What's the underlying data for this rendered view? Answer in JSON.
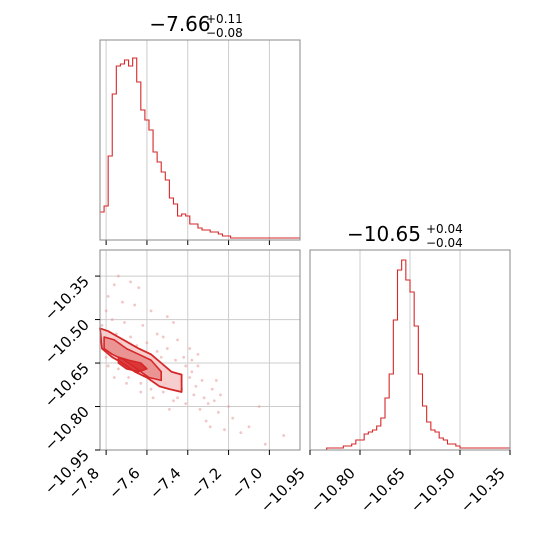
{
  "chart_data": [
    {
      "type": "histogram",
      "title": "−7.66",
      "title_sup": "+0.11",
      "title_sub": "−0.08",
      "xlim": [
        -7.83,
        -6.85
      ],
      "ylim": [
        0,
        1.0
      ],
      "grid": true,
      "color": "#d62728",
      "bins": {
        "x_start": -7.83,
        "width": 0.02,
        "heights": [
          0.14,
          0.17,
          0.42,
          0.73,
          0.87,
          0.88,
          0.9,
          0.87,
          0.91,
          0.79,
          0.65,
          0.6,
          0.55,
          0.44,
          0.39,
          0.34,
          0.3,
          0.21,
          0.18,
          0.12,
          0.13,
          0.12,
          0.08,
          0.08,
          0.06,
          0.05,
          0.05,
          0.04,
          0.04,
          0.03,
          0.02,
          0.02,
          0.01,
          0.01,
          0.01,
          0.01,
          0.01,
          0.01,
          0.01,
          0.01,
          0.01,
          0.01,
          0.01,
          0.01,
          0.01,
          0.01,
          0.01,
          0.01,
          0.01
        ]
      }
    },
    {
      "type": "scatter",
      "xlim": [
        -7.83,
        -6.85
      ],
      "ylim": [
        -10.95,
        -10.26
      ],
      "x_ticks": [
        "−7.8",
        "−7.6",
        "−7.4",
        "−7.2",
        "−7.0"
      ],
      "x_tick_values": [
        -7.8,
        -7.6,
        -7.4,
        -7.2,
        -7.0
      ],
      "y_ticks": [
        "−10.35",
        "−10.50",
        "−10.65",
        "−10.80",
        "−10.95"
      ],
      "y_tick_values": [
        -10.35,
        -10.5,
        -10.65,
        -10.8,
        -10.95
      ],
      "grid": true,
      "color": "#d62728",
      "contours": [
        {
          "level": "outer",
          "points": [
            [
              -7.83,
              -10.53
            ],
            [
              -7.79,
              -10.54
            ],
            [
              -7.74,
              -10.56
            ],
            [
              -7.69,
              -10.58
            ],
            [
              -7.64,
              -10.6
            ],
            [
              -7.58,
              -10.62
            ],
            [
              -7.53,
              -10.65
            ],
            [
              -7.48,
              -10.68
            ],
            [
              -7.43,
              -10.69
            ],
            [
              -7.43,
              -10.75
            ],
            [
              -7.49,
              -10.74
            ],
            [
              -7.54,
              -10.73
            ],
            [
              -7.6,
              -10.7
            ],
            [
              -7.66,
              -10.68
            ],
            [
              -7.72,
              -10.65
            ],
            [
              -7.77,
              -10.63
            ],
            [
              -7.82,
              -10.6
            ]
          ]
        },
        {
          "level": "middle",
          "points": [
            [
              -7.81,
              -10.56
            ],
            [
              -7.76,
              -10.57
            ],
            [
              -7.7,
              -10.6
            ],
            [
              -7.64,
              -10.62
            ],
            [
              -7.58,
              -10.64
            ],
            [
              -7.53,
              -10.68
            ],
            [
              -7.53,
              -10.71
            ],
            [
              -7.59,
              -10.7
            ],
            [
              -7.65,
              -10.67
            ],
            [
              -7.71,
              -10.64
            ],
            [
              -7.77,
              -10.62
            ],
            [
              -7.81,
              -10.6
            ]
          ]
        },
        {
          "level": "inner",
          "points": [
            [
              -7.74,
              -10.63
            ],
            [
              -7.69,
              -10.64
            ],
            [
              -7.63,
              -10.65
            ],
            [
              -7.6,
              -10.67
            ],
            [
              -7.64,
              -10.68
            ],
            [
              -7.7,
              -10.67
            ],
            [
              -7.74,
              -10.65
            ]
          ]
        }
      ],
      "points": [
        [
          -7.76,
          -10.38
        ],
        [
          -7.74,
          -10.35
        ],
        [
          -7.68,
          -10.37
        ],
        [
          -7.64,
          -10.39
        ],
        [
          -7.79,
          -10.42
        ],
        [
          -7.72,
          -10.44
        ],
        [
          -7.66,
          -10.45
        ],
        [
          -7.58,
          -10.47
        ],
        [
          -7.5,
          -10.49
        ],
        [
          -7.8,
          -10.47
        ],
        [
          -7.77,
          -10.5
        ],
        [
          -7.71,
          -10.51
        ],
        [
          -7.62,
          -10.52
        ],
        [
          -7.55,
          -10.55
        ],
        [
          -7.45,
          -10.57
        ],
        [
          -7.39,
          -10.6
        ],
        [
          -7.82,
          -10.52
        ],
        [
          -7.75,
          -10.55
        ],
        [
          -7.68,
          -10.56
        ],
        [
          -7.6,
          -10.58
        ],
        [
          -7.5,
          -10.6
        ],
        [
          -7.42,
          -10.63
        ],
        [
          -7.35,
          -10.66
        ],
        [
          -7.33,
          -10.71
        ],
        [
          -7.37,
          -10.76
        ],
        [
          -7.41,
          -10.79
        ],
        [
          -7.45,
          -10.77
        ],
        [
          -7.28,
          -10.74
        ],
        [
          -7.3,
          -10.79
        ],
        [
          -7.25,
          -10.82
        ],
        [
          -7.31,
          -10.85
        ],
        [
          -7.22,
          -10.88
        ],
        [
          -7.1,
          -10.87
        ],
        [
          -7.05,
          -10.8
        ],
        [
          -6.93,
          -10.9
        ],
        [
          -7.14,
          -10.89
        ],
        [
          -7.47,
          -10.51
        ],
        [
          -7.52,
          -10.56
        ],
        [
          -7.44,
          -10.71
        ],
        [
          -7.39,
          -10.7
        ],
        [
          -7.36,
          -10.73
        ],
        [
          -7.32,
          -10.77
        ],
        [
          -7.27,
          -10.78
        ],
        [
          -7.2,
          -10.8
        ],
        [
          -7.18,
          -10.84
        ],
        [
          -7.78,
          -10.58
        ],
        [
          -7.8,
          -10.63
        ],
        [
          -7.74,
          -10.67
        ],
        [
          -7.69,
          -10.7
        ],
        [
          -7.63,
          -10.72
        ],
        [
          -7.58,
          -10.74
        ],
        [
          -7.52,
          -10.75
        ],
        [
          -7.47,
          -10.78
        ],
        [
          -7.49,
          -10.81
        ],
        [
          -7.57,
          -10.77
        ],
        [
          -7.63,
          -10.75
        ],
        [
          -7.7,
          -10.72
        ],
        [
          -7.41,
          -10.66
        ],
        [
          -7.38,
          -10.64
        ],
        [
          -7.46,
          -10.64
        ],
        [
          -7.55,
          -10.61
        ],
        [
          -7.65,
          -10.59
        ],
        [
          -7.73,
          -10.58
        ],
        [
          -7.81,
          -10.57
        ],
        [
          -7.79,
          -10.66
        ],
        [
          -7.76,
          -10.7
        ],
        [
          -7.24,
          -10.76
        ],
        [
          -7.34,
          -10.81
        ],
        [
          -7.29,
          -10.87
        ],
        [
          -7.02,
          -10.93
        ],
        [
          -7.53,
          -10.63
        ],
        [
          -7.6,
          -10.66
        ],
        [
          -7.67,
          -10.63
        ],
        [
          -7.71,
          -10.61
        ],
        [
          -7.75,
          -10.62
        ],
        [
          -7.56,
          -10.69
        ],
        [
          -7.51,
          -10.72
        ],
        [
          -7.43,
          -10.74
        ],
        [
          -7.38,
          -10.68
        ],
        [
          -7.35,
          -10.62
        ],
        [
          -7.26,
          -10.71
        ]
      ]
    },
    {
      "type": "histogram",
      "title": "−10.65",
      "title_sup": "+0.04",
      "title_sub": "−0.04",
      "xlim": [
        -10.95,
        -10.35
      ],
      "ylim": [
        0,
        1.0
      ],
      "x_ticks": [
        "−10.95",
        "−10.80",
        "−10.65",
        "−10.50",
        "−10.35"
      ],
      "x_tick_values": [
        -10.95,
        -10.8,
        -10.65,
        -10.5,
        -10.35
      ],
      "grid": true,
      "color": "#d62728",
      "bins": {
        "x_start": -10.95,
        "width": 0.0125,
        "heights": [
          0,
          0,
          0,
          0,
          0.01,
          0.01,
          0.01,
          0.01,
          0.02,
          0.02,
          0.03,
          0.05,
          0.05,
          0.08,
          0.09,
          0.1,
          0.12,
          0.16,
          0.26,
          0.38,
          0.65,
          0.9,
          0.95,
          0.85,
          0.79,
          0.62,
          0.38,
          0.22,
          0.14,
          0.1,
          0.09,
          0.06,
          0.05,
          0.03,
          0.03,
          0.02,
          0.01,
          0.01,
          0.01,
          0.01,
          0.01,
          0.01,
          0.01,
          0.01,
          0.01,
          0.01,
          0.01,
          0.01
        ]
      }
    }
  ]
}
